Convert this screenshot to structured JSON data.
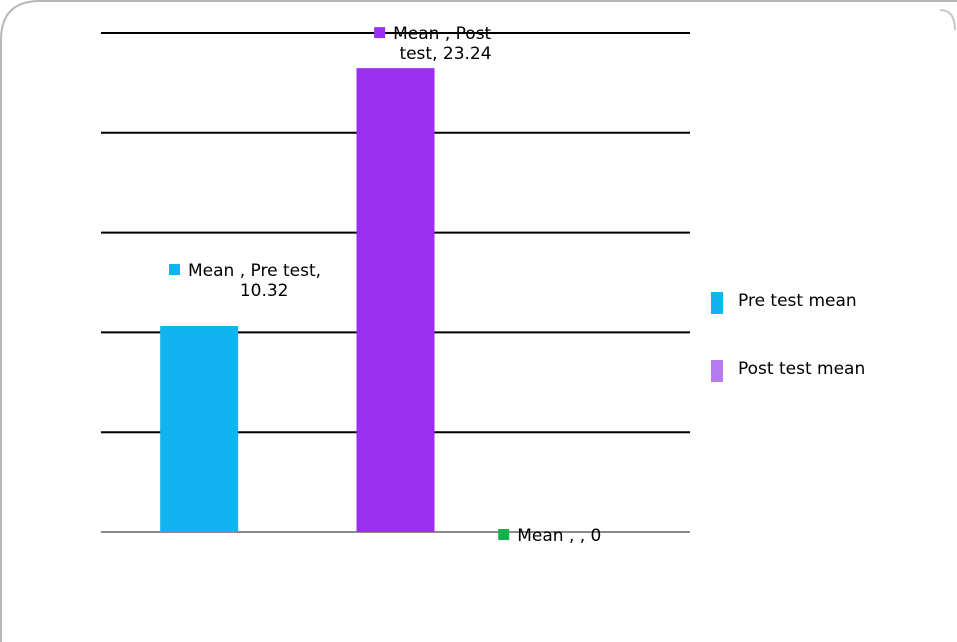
{
  "chart_data": {
    "type": "bar",
    "categories": [
      "Pre test",
      "Post test",
      ""
    ],
    "series": [
      {
        "name": "Mean",
        "values": [
          10.32,
          23.24,
          0
        ]
      }
    ],
    "ylim": [
      0,
      25
    ],
    "grid": true,
    "data_labels": [
      {
        "line1": "Mean , Pre test,",
        "line2": "10.32",
        "color": "#11b4ef"
      },
      {
        "line1": "Mean , Post",
        "line2": "test, 23.24",
        "color": "#9b2ff0"
      },
      {
        "line1": "Mean , , 0",
        "line2": "",
        "color": "#14b04b"
      }
    ],
    "bar_colors": [
      "#11b4ef",
      "#9b2ff0",
      "#14b04b"
    ],
    "legend": {
      "position": "right",
      "items": [
        {
          "label": "Pre test mean",
          "color": "#11b4ef"
        },
        {
          "label": "Post test mean",
          "color": "#b57bf0"
        }
      ]
    }
  }
}
